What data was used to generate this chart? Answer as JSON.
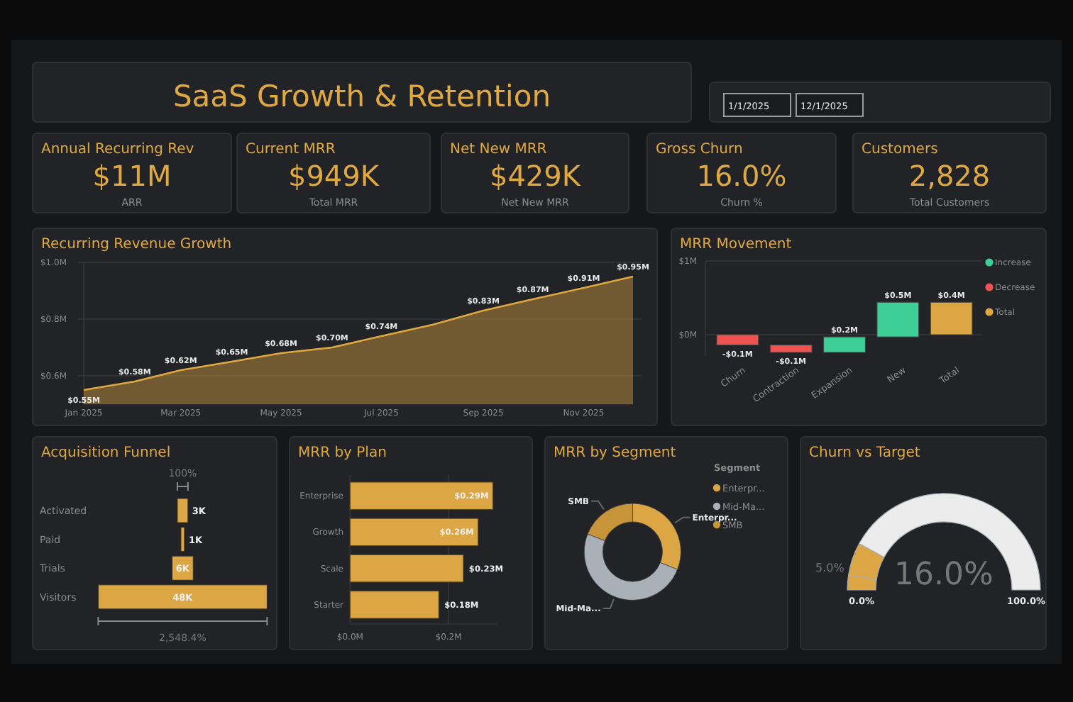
{
  "chart_data": [
    {
      "type": "other",
      "title": "SaaS Growth & Retention",
      "annotations": [
        "1/1/2025",
        "12/1/2025"
      ]
    },
    {
      "type": "other",
      "title": "Annual Recurring Rev",
      "annotations": [
        "$11M",
        "ARR"
      ]
    },
    {
      "type": "other",
      "title": "Current MRR",
      "annotations": [
        "$949K",
        "Total MRR"
      ]
    },
    {
      "type": "other",
      "title": "Net New MRR",
      "annotations": [
        "$429K",
        "Net New MRR"
      ]
    },
    {
      "type": "other",
      "title": "Gross Churn",
      "annotations": [
        "16.0%",
        "Churn %"
      ]
    },
    {
      "type": "other",
      "title": "Customers",
      "annotations": [
        "2,828",
        "Total Customers"
      ]
    },
    {
      "type": "area",
      "title": "Recurring Revenue Growth",
      "x": [
        "2025-01",
        "2025-02",
        "2025-03",
        "2025-04",
        "2025-05",
        "2025-06",
        "2025-07",
        "2025-08",
        "2025-09",
        "2025-10",
        "2025-11",
        "2025-12"
      ],
      "values": [
        0.55,
        0.58,
        0.62,
        0.65,
        0.68,
        0.7,
        0.74,
        0.78,
        0.83,
        0.87,
        0.91,
        0.95
      ],
      "value_labels": [
        "$0.55M",
        "$0.58M",
        "$0.62M",
        "$0.65M",
        "$0.68M",
        "$0.70M",
        "$0.74M",
        null,
        "$0.83M",
        "$0.87M",
        "$0.91M",
        "$0.95M"
      ],
      "color": "#e0a840",
      "xlim": [
        "2025-01",
        "2025-12"
      ],
      "xticks": [
        {
          "value": "2025-01",
          "label": "Jan 2025"
        },
        {
          "value": "2025-03",
          "label": "Mar 2025"
        },
        {
          "value": "2025-05",
          "label": "May 2025"
        },
        {
          "value": "2025-07",
          "label": "Jul 2025"
        },
        {
          "value": "2025-09",
          "label": "Sep 2025"
        },
        {
          "value": "2025-11",
          "label": "Nov 2025"
        }
      ],
      "ylim": [
        0.5,
        1.0
      ],
      "yticks": [
        {
          "value": 0.6,
          "label": "$0.6M"
        },
        {
          "value": 0.8,
          "label": "$0.8M"
        },
        {
          "value": 1.0,
          "label": "$1.0M"
        }
      ],
      "grid": "y"
    },
    {
      "type": "bar",
      "title": "MRR Movement",
      "categories": [
        "Churn",
        "Contraction",
        "Expansion",
        "New",
        "Total"
      ],
      "series": [
        {
          "name": "Increase",
          "color": "#3ecf96",
          "base": [
            null,
            null,
            -0.24,
            -0.03,
            null
          ],
          "values": [
            null,
            null,
            0.21,
            0.47,
            null
          ],
          "value_labels": [
            null,
            null,
            "$0.2M",
            "$0.5M",
            null
          ]
        },
        {
          "name": "Decrease",
          "color": "#ef5350",
          "base": [
            0,
            -0.14,
            null,
            null,
            null
          ],
          "values": [
            -0.14,
            -0.1,
            null,
            null,
            null
          ],
          "value_labels": [
            "-$0.1M",
            "-$0.1M",
            null,
            null,
            null
          ]
        },
        {
          "name": "Total",
          "color": "#dba643",
          "base": [
            null,
            null,
            null,
            null,
            0
          ],
          "values": [
            null,
            null,
            null,
            null,
            0.44
          ],
          "value_labels": [
            null,
            null,
            null,
            null,
            "$0.4M"
          ]
        }
      ],
      "ylim": [
        -0.3,
        1.0
      ],
      "yticks": [
        {
          "value": 0,
          "label": "$0M"
        },
        {
          "value": 1,
          "label": "$1M"
        }
      ],
      "grid": "y",
      "legend": "right"
    },
    {
      "type": "other",
      "title": "Acquisition Funnel",
      "categories": [
        "Activated",
        "Paid",
        "Trials",
        "Visitors"
      ],
      "values": [
        3,
        1,
        6,
        48
      ],
      "value_labels": [
        "3K",
        "1K",
        "6K",
        "48K"
      ],
      "annotations": [
        "100%",
        "2,548.4%"
      ]
    },
    {
      "type": "bar",
      "orientation": "horizontal",
      "title": "MRR by Plan",
      "categories": [
        "Enterprise",
        "Growth",
        "Scale",
        "Starter"
      ],
      "values": [
        0.29,
        0.26,
        0.23,
        0.18
      ],
      "value_labels": [
        "$0.29M",
        "$0.26M",
        "$0.23M",
        "$0.18M"
      ],
      "color": "#dba643",
      "xlim": [
        0,
        0.3
      ],
      "xticks": [
        {
          "value": 0,
          "label": "$0.0M"
        },
        {
          "value": 0.2,
          "label": "$0.2M"
        }
      ],
      "grid": "x"
    },
    {
      "type": "donut",
      "title": "MRR by Segment",
      "legend_title": "Segment",
      "categories": [
        "Enterpr...",
        "Mid-Ma...",
        "SMB"
      ],
      "values": [
        31,
        50,
        19
      ],
      "colors": [
        "#dba643",
        "#a9b0b8",
        "#c8943a"
      ],
      "legend": "right"
    },
    {
      "type": "donut",
      "title": "Churn vs Target",
      "categories": [
        null,
        null,
        null
      ],
      "values": [
        5,
        11,
        84
      ],
      "colors": [
        "#dba643",
        "#dba643",
        "#ececec"
      ],
      "annotations": [
        "16.0%",
        "0.0%",
        "100.0%",
        "5.0%"
      ]
    }
  ]
}
